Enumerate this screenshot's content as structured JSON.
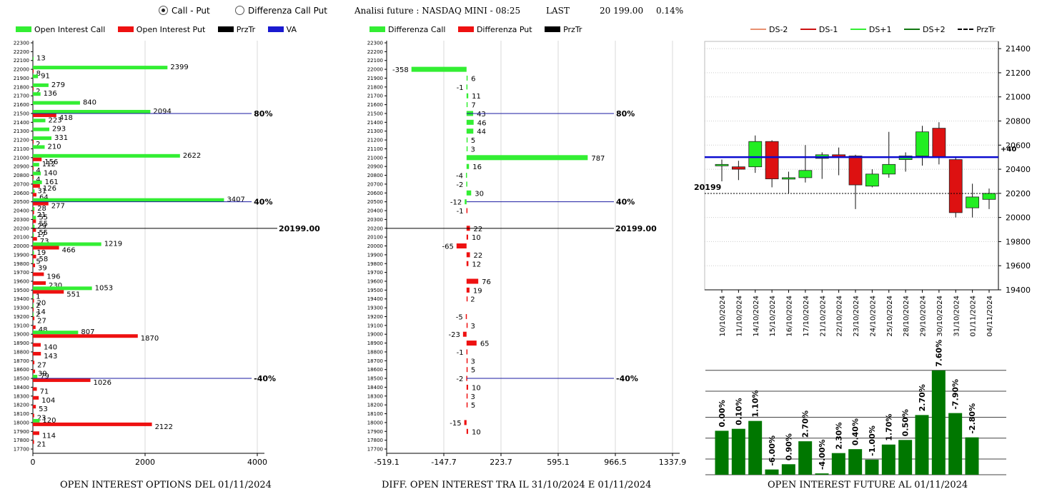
{
  "header": {
    "radio_call_put": "Call - Put",
    "radio_diff": "Differenza Call Put",
    "title": "Analisi future : NASDAQ MINI - 08:25",
    "last_label": "LAST",
    "last_value": "20 199.00",
    "change": "0.14%"
  },
  "legend1": [
    "Open Interest Call",
    "Open Interest Put",
    "PrzTr",
    "VA"
  ],
  "legend2": [
    "Differenza Call",
    "Differenza Put",
    "PrzTr"
  ],
  "legend3": [
    "DS-2",
    "DS-1",
    "DS+1",
    "DS+2",
    "PrzTr"
  ],
  "colors": {
    "call": "#33ee33",
    "put": "#ee1111",
    "va": "#1a1aa0",
    "bull": "#22ee22",
    "bear": "#dd1111",
    "bar3": "#007700",
    "ds_minus2": "#e89070",
    "ds_minus1": "#cc1111",
    "ds_plus1": "#33ee33",
    "ds_plus2": "#117711"
  },
  "footers": {
    "f1": "OPEN INTEREST OPTIONS DEL 01/11/2024",
    "f2": "DIFF. OPEN INTEREST TRA IL 31/10/2024 E 01/11/2024",
    "f3": "OPEN INTEREST FUTURE AL 01/11/2024"
  },
  "chart_data": [
    {
      "type": "bar",
      "orientation": "horizontal",
      "strikes": [
        22300,
        22200,
        22100,
        22000,
        21900,
        21800,
        21700,
        21600,
        21500,
        21400,
        21300,
        21200,
        21100,
        21000,
        20900,
        20800,
        20700,
        20600,
        20500,
        20400,
        20300,
        20200,
        20100,
        20000,
        19900,
        19800,
        19700,
        19600,
        19500,
        19400,
        19300,
        19200,
        19100,
        19000,
        18900,
        18800,
        18700,
        18600,
        18500,
        18400,
        18300,
        18200,
        18100,
        18000,
        17900,
        17800,
        17700
      ],
      "series": [
        {
          "name": "Open Interest Call",
          "values": [
            0,
            0,
            13,
            2399,
            91,
            279,
            136,
            840,
            2094,
            223,
            293,
            331,
            210,
            2622,
            112,
            140,
            161,
            31,
            3407,
            28,
            55,
            29,
            17,
            1219,
            19,
            5,
            0,
            0,
            1053,
            1,
            2,
            2,
            0,
            807,
            0,
            0,
            0,
            0,
            79,
            0,
            0,
            0,
            0,
            120,
            0,
            0,
            0
          ]
        },
        {
          "name": "Open Interest Put",
          "values": [
            0,
            0,
            0,
            8,
            0,
            2,
            0,
            0,
            418,
            0,
            0,
            2,
            0,
            156,
            4,
            4,
            126,
            64,
            277,
            21,
            55,
            55,
            73,
            466,
            58,
            39,
            196,
            230,
            551,
            20,
            14,
            27,
            48,
            1870,
            140,
            143,
            27,
            39,
            1026,
            71,
            104,
            53,
            23,
            2122,
            114,
            21,
            0
          ]
        }
      ],
      "xticks": [
        0,
        2000,
        4000
      ],
      "xlim": [
        0,
        4000
      ],
      "refs": [
        {
          "strike": 21500,
          "label": "80%"
        },
        {
          "strike": 20500,
          "label": "40%"
        },
        {
          "strike": 18500,
          "label": "-40%"
        }
      ],
      "price": {
        "value": 20199,
        "label": "20199.00"
      }
    },
    {
      "type": "bar",
      "orientation": "horizontal",
      "strikes": [
        22300,
        22200,
        22100,
        22000,
        21900,
        21800,
        21700,
        21600,
        21500,
        21400,
        21300,
        21200,
        21100,
        21000,
        20900,
        20800,
        20700,
        20600,
        20500,
        20400,
        20300,
        20200,
        20100,
        20000,
        19900,
        19800,
        19700,
        19600,
        19500,
        19400,
        19300,
        19200,
        19100,
        19000,
        18900,
        18800,
        18700,
        18600,
        18500,
        18400,
        18300,
        18200,
        18100,
        18000,
        17900,
        17800,
        17700
      ],
      "values": [
        null,
        null,
        null,
        -358,
        6,
        -1,
        11,
        7,
        43,
        46,
        44,
        5,
        3,
        787,
        16,
        -4,
        -2,
        30,
        -12,
        -1,
        null,
        22,
        10,
        -65,
        22,
        12,
        null,
        76,
        19,
        2,
        null,
        -5,
        3,
        -23,
        65,
        -1,
        3,
        5,
        -2,
        10,
        3,
        5,
        null,
        -15,
        10,
        null,
        null
      ],
      "xticks": [
        "-519.1",
        "-147.7",
        "223.7",
        "595.1",
        "966.5",
        "1337.9"
      ],
      "xlim": [
        -519.1,
        1337.9
      ],
      "refs": [
        {
          "strike": 21500,
          "label": "80%"
        },
        {
          "strike": 20500,
          "label": "40%"
        },
        {
          "strike": 18500,
          "label": "-40%"
        }
      ],
      "price": {
        "value": 20199,
        "label": "20199.00"
      }
    },
    {
      "type": "candlestick",
      "dates": [
        "10/10/2024",
        "11/10/2024",
        "14/10/2024",
        "15/10/2024",
        "16/10/2024",
        "17/10/2024",
        "21/10/2024",
        "22/10/2024",
        "23/10/2024",
        "24/10/2024",
        "25/10/2024",
        "28/10/2024",
        "29/10/2024",
        "30/10/2024",
        "31/10/2024",
        "01/11/2024",
        "04/11/2024"
      ],
      "ohlc": [
        [
          20430,
          20480,
          20300,
          20440
        ],
        [
          20420,
          20470,
          20310,
          20400
        ],
        [
          20420,
          20680,
          20370,
          20630
        ],
        [
          20630,
          20640,
          20250,
          20320
        ],
        [
          20330,
          20380,
          20200,
          20330
        ],
        [
          20330,
          20600,
          20290,
          20390
        ],
        [
          20490,
          20540,
          20320,
          20520
        ],
        [
          20520,
          20580,
          20350,
          20500
        ],
        [
          20510,
          20520,
          20070,
          20270
        ],
        [
          20260,
          20400,
          20250,
          20360
        ],
        [
          20360,
          20710,
          20330,
          20440
        ],
        [
          20480,
          20540,
          20380,
          20510
        ],
        [
          20510,
          20760,
          20430,
          20710
        ],
        [
          20740,
          20790,
          20440,
          20500
        ],
        [
          20480,
          20500,
          20000,
          20040
        ],
        [
          20080,
          20280,
          20000,
          20170
        ],
        [
          20150,
          20240,
          20070,
          20200
        ]
      ],
      "yticks": [
        19400,
        19600,
        19800,
        20000,
        20200,
        20400,
        20600,
        20800,
        21000,
        21200,
        21400
      ],
      "ylim": [
        19400,
        21460
      ],
      "va_level": 20500,
      "va_label": "+40",
      "price": {
        "value": 20199,
        "label": "20199"
      }
    },
    {
      "type": "bar",
      "values": [
        6.7,
        7.0,
        8.2,
        0.8,
        1.6,
        5.1,
        0.2,
        3.3,
        3.9,
        2.3,
        4.6,
        5.3,
        9.1,
        15.9,
        9.4,
        5.7
      ],
      "labels": [
        "0.00%",
        "0.10%",
        "1.10%",
        "-6.00%",
        "0.90%",
        "2.70%",
        "-4.00%",
        "2.30%",
        "0.40%",
        "-1.00%",
        "1.70%",
        "0.50%",
        "2.70%",
        "7.60%",
        "-7.90%",
        "-2.80%"
      ],
      "ylim": [
        0,
        16
      ]
    }
  ]
}
